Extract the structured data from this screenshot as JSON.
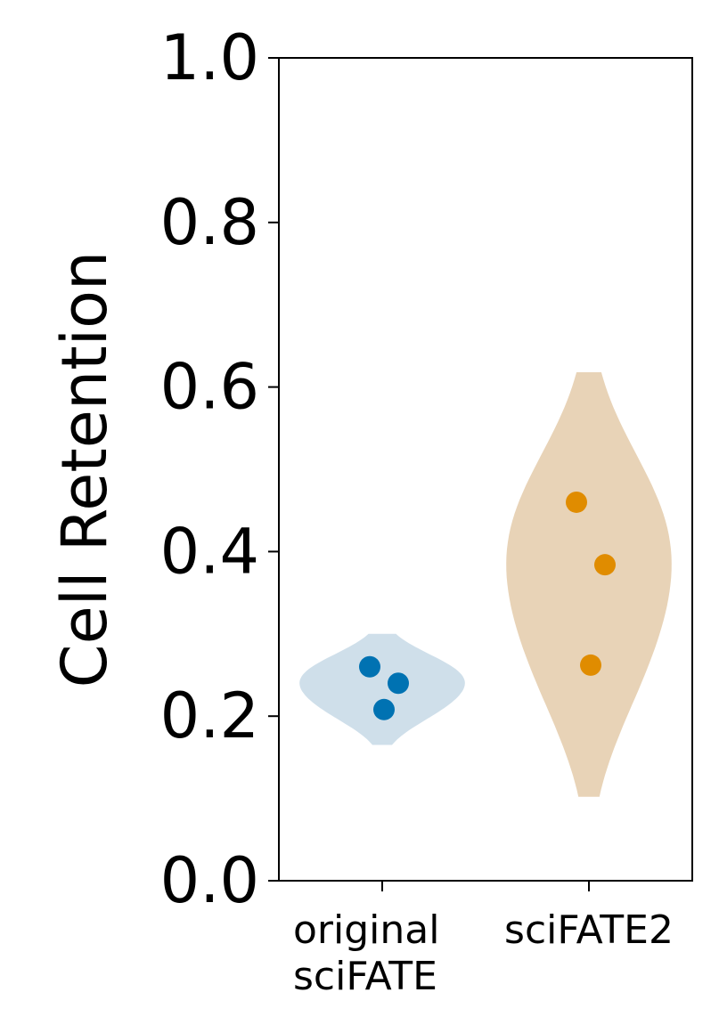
{
  "chart_data": {
    "type": "violin",
    "title": "",
    "xlabel": "",
    "ylabel": "Cell Retention",
    "ylim": [
      0.0,
      1.0
    ],
    "yticks": [
      {
        "value": 0.0,
        "label": "0.0"
      },
      {
        "value": 0.2,
        "label": "0.2"
      },
      {
        "value": 0.4,
        "label": "0.4"
      },
      {
        "value": 0.6,
        "label": "0.6"
      },
      {
        "value": 0.8,
        "label": "0.8"
      },
      {
        "value": 1.0,
        "label": "1.0"
      }
    ],
    "grid": false,
    "legend": "none",
    "categories": [
      {
        "label_lines": [
          "original",
          "sciFATE"
        ]
      },
      {
        "label_lines": [
          "sciFATE2"
        ]
      }
    ],
    "series": [
      {
        "point_color": "#0072b2",
        "violin_color": "#cfdfea",
        "range": [
          0.165,
          0.3
        ],
        "points": [
          0.26,
          0.24,
          0.208
        ]
      },
      {
        "point_color": "#e08c00",
        "violin_color": "#e8d3b7",
        "range": [
          0.102,
          0.618
        ],
        "points": [
          0.46,
          0.384,
          0.262
        ]
      }
    ]
  }
}
